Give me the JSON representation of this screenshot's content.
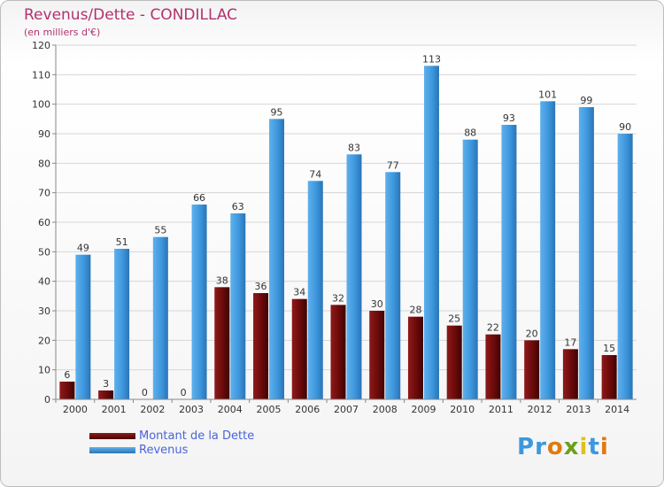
{
  "header": {
    "title": "Revenus/Dette - CONDILLAC",
    "subtitle": "(en milliers d'€)"
  },
  "chart_data": {
    "type": "bar",
    "categories": [
      "2000",
      "2001",
      "2002",
      "2003",
      "2004",
      "2005",
      "2006",
      "2007",
      "2008",
      "2009",
      "2010",
      "2011",
      "2012",
      "2013",
      "2014"
    ],
    "series": [
      {
        "name": "Montant de la Dette",
        "values": [
          6,
          3,
          0,
          0,
          38,
          36,
          34,
          32,
          30,
          28,
          25,
          22,
          20,
          17,
          15
        ],
        "color": "#6b0a0a"
      },
      {
        "name": "Revenus",
        "values": [
          49,
          51,
          55,
          66,
          63,
          95,
          74,
          83,
          77,
          113,
          88,
          93,
          101,
          99,
          90
        ],
        "color": "#3d97dd"
      }
    ],
    "yticks": [
      0,
      10,
      20,
      30,
      40,
      50,
      60,
      70,
      80,
      90,
      100,
      110,
      120
    ],
    "ylim": [
      0,
      120
    ],
    "grid": true,
    "legend": "bottom-left"
  },
  "colors": {
    "title": "#b2316e",
    "debt": "#6b0a0a",
    "revenue": "#3d97dd",
    "legend_text": "#4a64d8"
  },
  "logo": {
    "text": "Proxiti",
    "letter_colors": [
      "#3d97dd",
      "#3d97dd",
      "#e07a10",
      "#6b9f1a",
      "#e0c020",
      "#3d97dd",
      "#e07a10"
    ]
  }
}
